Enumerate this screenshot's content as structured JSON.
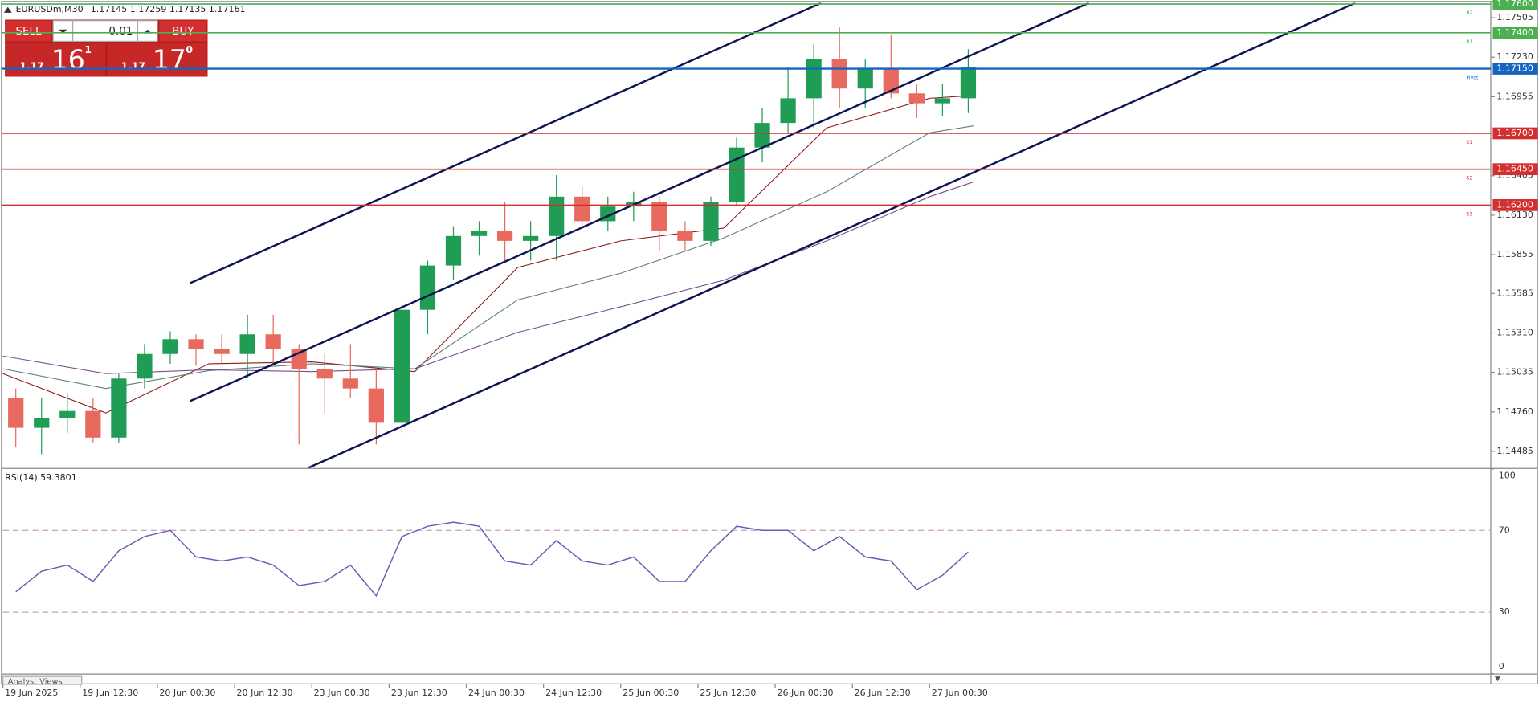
{
  "header": {
    "symbol": "EURUSDm,M30",
    "ohlc": "1.17145 1.17259 1.17135 1.17161"
  },
  "trade_panel": {
    "sell": "SELL",
    "lot": "0.01",
    "buy": "BUY",
    "bid": {
      "prefix": "1.17",
      "big": "16",
      "small": "1"
    },
    "ask": {
      "prefix": "1.17",
      "big": "17",
      "small": "0"
    }
  },
  "footer_tab": "Analyst Views",
  "chart_data": [
    {
      "type": "candlestick",
      "xlim": [
        0,
        57.8
      ],
      "xticks": [
        {
          "value": 0,
          "label": "19 Jun 2025"
        },
        {
          "value": 3,
          "label": "19 Jun 12:30"
        },
        {
          "value": 6,
          "label": "20 Jun 00:30"
        },
        {
          "value": 9,
          "label": "20 Jun 12:30"
        },
        {
          "value": 12,
          "label": "23 Jun 00:30"
        },
        {
          "value": 15,
          "label": "23 Jun 12:30"
        },
        {
          "value": 18,
          "label": "24 Jun 00:30"
        },
        {
          "value": 21,
          "label": "24 Jun 12:30"
        },
        {
          "value": 24,
          "label": "25 Jun 00:30"
        },
        {
          "value": 27,
          "label": "25 Jun 12:30"
        },
        {
          "value": 30,
          "label": "26 Jun 00:30"
        },
        {
          "value": 33,
          "label": "26 Jun 12:30"
        },
        {
          "value": 36,
          "label": "27 Jun 00:30"
        }
      ],
      "ylim": [
        1.14369,
        1.17608
      ],
      "yticks": [
        1.17505,
        {
          "value": 1.1723,
          "label": "1.17230"
        },
        1.16955,
        1.16405,
        {
          "value": 1.1613,
          "label": "1.16130"
        },
        1.15855,
        1.15585,
        {
          "value": 1.1531,
          "label": "1.15310"
        },
        1.15035,
        {
          "value": 1.1476,
          "label": "1.14760"
        },
        1.14485
      ],
      "up_color": "#1f9d55",
      "down_color": "#e8695e",
      "open": [
        1.14855,
        1.14649,
        1.14718,
        1.14766,
        1.14581,
        1.14992,
        1.15163,
        1.15266,
        1.15197,
        1.15163,
        1.153,
        1.15197,
        1.1506,
        1.14992,
        1.14923,
        1.14684,
        1.15471,
        1.15779,
        1.15985,
        1.16019,
        1.15951,
        1.15985,
        1.16259,
        1.16088,
        1.1619,
        1.16224,
        1.16019,
        1.15951,
        1.16224,
        1.16601,
        1.16772,
        1.16944,
        1.17217,
        1.17012,
        1.17149,
        1.16978,
        1.16909,
        1.16944
      ],
      "high": [
        1.14923,
        1.14855,
        1.14889,
        1.14855,
        1.15026,
        1.15232,
        1.15321,
        1.153,
        1.153,
        1.15437,
        1.15437,
        1.15232,
        1.15163,
        1.15232,
        1.1506,
        1.15505,
        1.15814,
        1.16053,
        1.16088,
        1.16224,
        1.16088,
        1.16409,
        1.16327,
        1.16259,
        1.16293,
        1.16259,
        1.16088,
        1.16259,
        1.1667,
        1.16875,
        1.17163,
        1.1732,
        1.17437,
        1.17217,
        1.17389,
        1.17046,
        1.17046,
        1.17286
      ],
      "low": [
        1.14512,
        1.14465,
        1.14615,
        1.14547,
        1.14547,
        1.14923,
        1.15095,
        1.15081,
        1.15095,
        1.14992,
        1.15095,
        1.14533,
        1.14752,
        1.14855,
        1.14533,
        1.14615,
        1.153,
        1.15677,
        1.15848,
        1.15814,
        1.15814,
        1.15814,
        1.16053,
        1.16019,
        1.16088,
        1.15882,
        1.15882,
        1.15916,
        1.1619,
        1.16498,
        1.16704,
        1.16738,
        1.16875,
        1.16875,
        1.16944,
        1.16807,
        1.1682,
        1.16841
      ],
      "close": [
        1.14649,
        1.14718,
        1.14766,
        1.14581,
        1.14992,
        1.15163,
        1.15266,
        1.15197,
        1.15163,
        1.153,
        1.15197,
        1.1506,
        1.14992,
        1.14923,
        1.14684,
        1.15471,
        1.15779,
        1.15985,
        1.16019,
        1.15951,
        1.15985,
        1.16259,
        1.16088,
        1.1619,
        1.16224,
        1.16019,
        1.15951,
        1.16224,
        1.16601,
        1.16772,
        1.16944,
        1.17217,
        1.17012,
        1.17149,
        1.16978,
        1.16909,
        1.16944,
        1.17161
      ],
      "moving_averages": [
        {
          "color": "#8b1a1a",
          "x": [
            0,
            4,
            8,
            12,
            16,
            20,
            24,
            28,
            32,
            36,
            37.7
          ],
          "values": [
            1.15026,
            1.14752,
            1.15095,
            1.15108,
            1.1504,
            1.15766,
            1.15951,
            1.1604,
            1.16738,
            1.16944,
            1.16964
          ]
        },
        {
          "color": "#5e7f78",
          "x": [
            0,
            4,
            8,
            12,
            16,
            20,
            24,
            28,
            32,
            36,
            37.7
          ],
          "values": [
            1.1506,
            1.14923,
            1.15047,
            1.15095,
            1.1506,
            1.1554,
            1.15725,
            1.15971,
            1.16293,
            1.16704,
            1.16752
          ]
        },
        {
          "color": "#7a4f8a",
          "x": [
            0,
            4,
            8,
            12,
            16,
            20,
            24,
            28,
            32,
            36,
            37.7
          ],
          "values": [
            1.15149,
            1.15026,
            1.15053,
            1.1504,
            1.1506,
            1.15314,
            1.15492,
            1.15677,
            1.15951,
            1.16259,
            1.16361
          ]
        }
      ],
      "trendline_color": "#0d1450",
      "trendlines": [
        {
          "x": [
            7.26,
            31.79
          ],
          "values": [
            1.15656,
            1.17608
          ]
        },
        {
          "x": [
            7.26,
            42.19
          ],
          "values": [
            1.14834,
            1.17608
          ]
        },
        {
          "x": [
            11.85,
            52.54
          ],
          "values": [
            1.14369,
            1.17608
          ]
        }
      ],
      "levels": [
        {
          "name": "R2",
          "value": 1.176,
          "label": "1.17600",
          "color": "#4caf50"
        },
        {
          "name": "R1",
          "value": 1.174,
          "label": "1.17400",
          "color": "#4caf50"
        },
        {
          "name": "Pivot",
          "value": 1.1715,
          "label": "1.17150",
          "color": "#1565c0"
        },
        {
          "name": "S1",
          "value": 1.167,
          "label": "1.16700",
          "color": "#d32f2f"
        },
        {
          "name": "S2",
          "value": 1.1645,
          "label": "1.16450",
          "color": "#d32f2f"
        },
        {
          "name": "S3",
          "value": 1.162,
          "label": "1.16200",
          "color": "#d32f2f"
        }
      ]
    },
    {
      "type": "line",
      "title": "RSI(14) 59.3801",
      "xlim": [
        0,
        57.8
      ],
      "ylim": [
        0,
        100
      ],
      "yticks": [
        0,
        30,
        70,
        100
      ],
      "grid": true,
      "grid_color": "#c9a0b8",
      "color": "#6b5bb5",
      "values": [
        40,
        50,
        53,
        45,
        60,
        67,
        70,
        57,
        55,
        57,
        53,
        43,
        45,
        53,
        38,
        67,
        72,
        74,
        72,
        55,
        53,
        65,
        55,
        53,
        57,
        45,
        45,
        60,
        72,
        70,
        70,
        60,
        67,
        57,
        55,
        41,
        48,
        59.3801
      ]
    }
  ]
}
